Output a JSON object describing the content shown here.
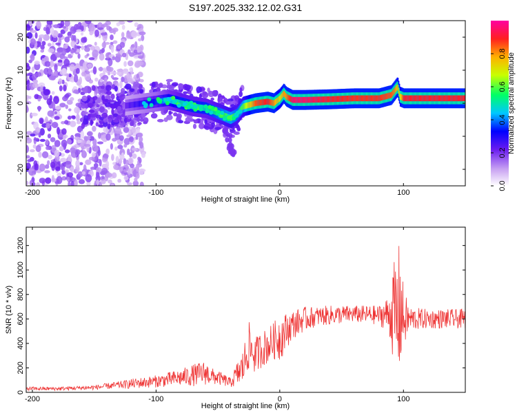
{
  "title": "S197.2025.332.12.02.G31",
  "chart_data": [
    {
      "type": "heatmap",
      "title": "S197.2025.332.12.02.G31",
      "xlabel": "Height of straight line (km)",
      "ylabel": "Frequency (Hz)",
      "xlim": [
        -205,
        150
      ],
      "ylim": [
        -25,
        25
      ],
      "xticks": [
        -200,
        -100,
        0,
        100
      ],
      "xtick_labels": [
        "-200",
        "-100",
        "0",
        "100"
      ],
      "yticks": [
        20,
        10,
        0,
        -10,
        -20
      ],
      "ytick_labels": [
        "20",
        "10",
        "0",
        "-10",
        "-20"
      ],
      "colorbar": {
        "label": "Normalized spectral amplitude",
        "range": [
          0,
          1
        ],
        "ticks": [
          0.0,
          0.2,
          0.4,
          0.6,
          0.8
        ],
        "tick_labels": [
          "0.0",
          "0.2",
          "0.4",
          "0.6",
          "0.8"
        ]
      },
      "ridge": {
        "x": [
          -130,
          -110,
          -100,
          -90,
          -80,
          -70,
          -60,
          -50,
          -40,
          -35,
          -30,
          -20,
          -10,
          -5,
          0,
          3,
          5,
          10,
          20,
          40,
          60,
          80,
          90,
          93,
          95,
          97,
          100,
          120,
          150
        ],
        "y": [
          -1,
          0,
          0.5,
          1,
          0,
          -1,
          -1.5,
          -3,
          -4.5,
          -3.5,
          -1,
          0,
          0.5,
          0,
          1.5,
          3,
          2,
          1,
          1,
          1.2,
          1.5,
          1.5,
          2.5,
          4,
          5,
          2,
          1.5,
          1.5,
          1.5
        ],
        "amplitude": [
          0.2,
          0.3,
          0.35,
          0.45,
          0.5,
          0.5,
          0.5,
          0.55,
          0.6,
          0.55,
          0.6,
          0.85,
          0.9,
          0.8,
          0.7,
          0.8,
          0.8,
          0.95,
          0.95,
          0.9,
          0.88,
          0.88,
          0.85,
          0.8,
          0.75,
          0.7,
          0.9,
          0.9,
          0.9
        ]
      },
      "scatter_extent": {
        "x_from": -205,
        "x_to": -110,
        "y_from": -25,
        "y_to": 25,
        "max_amplitude": 0.2
      },
      "tail": {
        "x": [
          -45,
          -40,
          -38
        ],
        "y": [
          -8,
          -12,
          -15
        ]
      }
    },
    {
      "type": "line",
      "xlabel": "Height of straight line (km)",
      "ylabel": "SNR (10 * v/v)",
      "xlim": [
        -205,
        150
      ],
      "ylim": [
        0,
        1350
      ],
      "xticks": [
        -200,
        -100,
        0,
        100
      ],
      "xtick_labels": [
        "-200",
        "-100",
        "0",
        "100"
      ],
      "yticks": [
        0,
        200,
        400,
        600,
        800,
        1000,
        1200
      ],
      "ytick_labels": [
        "0",
        "200",
        "400",
        "600",
        "800",
        "1000",
        "1200"
      ],
      "color": "#ee3333",
      "envelope": {
        "x": [
          -205,
          -180,
          -150,
          -130,
          -120,
          -100,
          -80,
          -70,
          -60,
          -55,
          -50,
          -40,
          -30,
          -25,
          -20,
          -15,
          -10,
          -5,
          0,
          5,
          10,
          20,
          30,
          40,
          60,
          80,
          88,
          92,
          95,
          97,
          100,
          105,
          120,
          150
        ],
        "mean": [
          30,
          30,
          40,
          60,
          70,
          90,
          120,
          140,
          160,
          130,
          120,
          80,
          200,
          380,
          300,
          350,
          380,
          420,
          450,
          500,
          550,
          600,
          620,
          630,
          640,
          630,
          640,
          650,
          600,
          700,
          600,
          600,
          600,
          600
        ],
        "amp": [
          15,
          15,
          20,
          30,
          40,
          50,
          70,
          90,
          100,
          70,
          60,
          40,
          150,
          200,
          150,
          150,
          150,
          150,
          200,
          150,
          120,
          100,
          80,
          80,
          70,
          80,
          150,
          400,
          550,
          550,
          250,
          100,
          80,
          80
        ]
      }
    }
  ]
}
